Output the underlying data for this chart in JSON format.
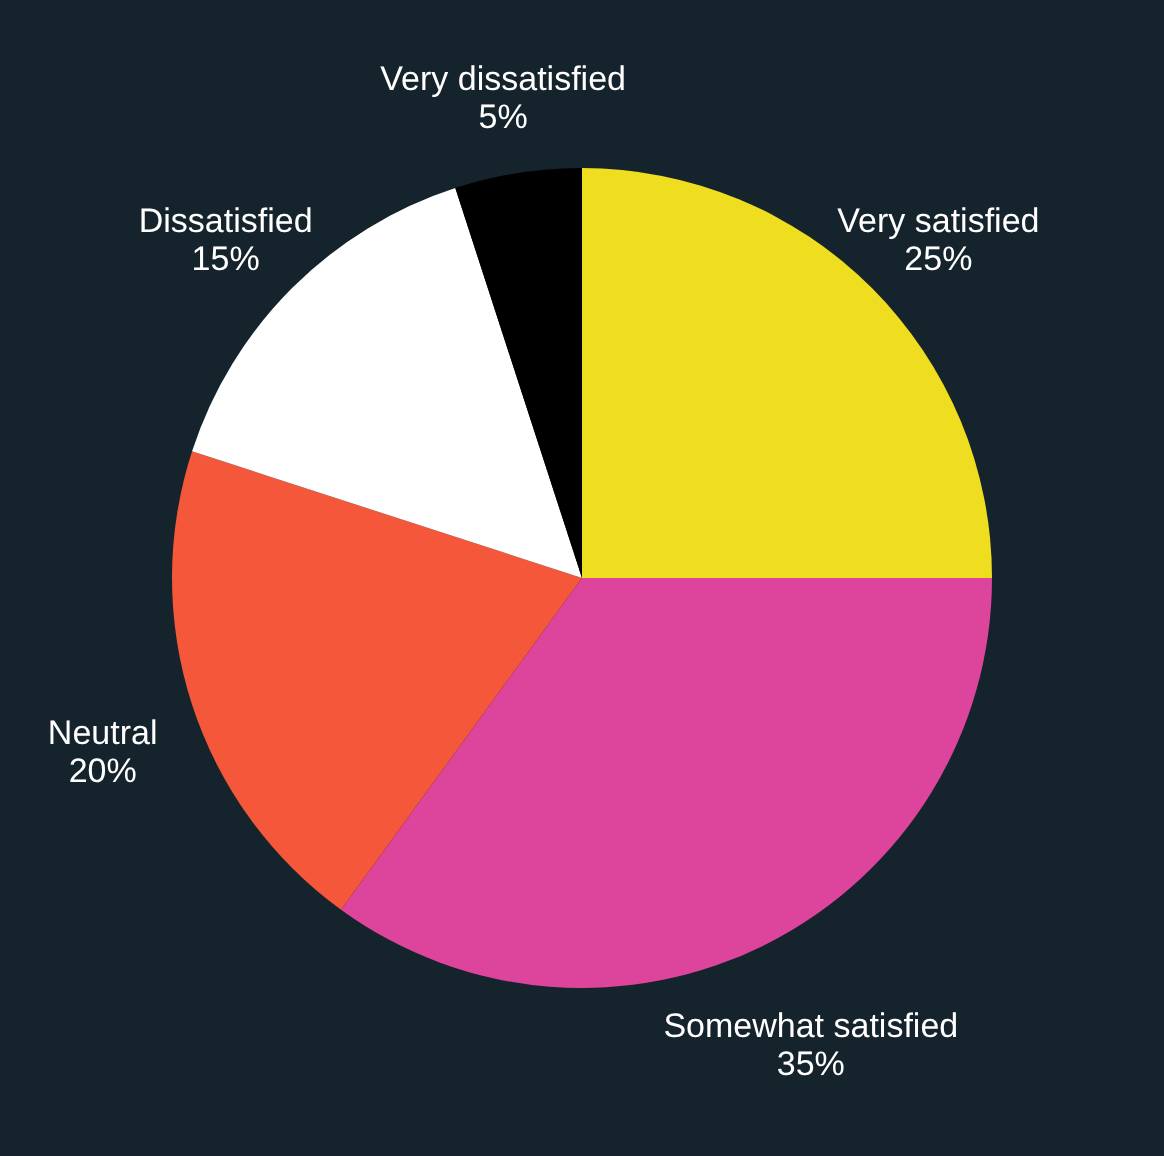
{
  "chart_data": {
    "type": "pie",
    "categories": [
      "Very satisfied",
      "Somewhat satisfied",
      "Neutral",
      "Dissatisfied",
      "Very dissatisfied"
    ],
    "values": [
      25,
      35,
      20,
      15,
      5
    ],
    "value_labels": [
      "25%",
      "35%",
      "20%",
      "15%",
      "5%"
    ],
    "colors": [
      "#efde1f",
      "#dd459c",
      "#f4573a",
      "#ffffff",
      "#000000"
    ]
  }
}
